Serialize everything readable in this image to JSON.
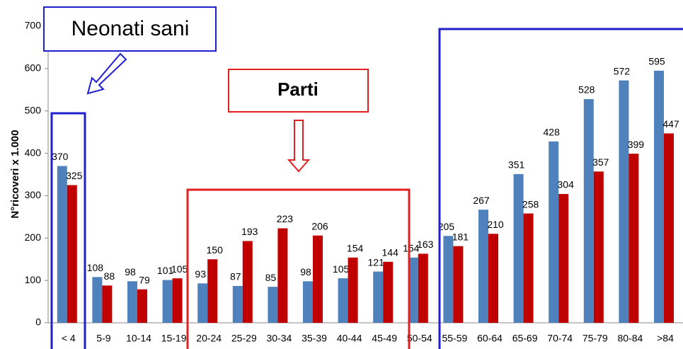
{
  "chart_data": {
    "type": "bar",
    "ylabel": "N°ricoveri x 1.000",
    "annotations": [
      "Neonati sani",
      "Parti"
    ],
    "categories": [
      "< 4",
      "5-9",
      "10-14",
      "15-19",
      "20-24",
      "25-29",
      "30-34",
      "35-39",
      "40-44",
      "45-49",
      "50-54",
      "55-59",
      "60-64",
      "65-69",
      "70-74",
      "75-79",
      "80-84",
      ">84"
    ],
    "series": [
      {
        "color": "#4f81bd",
        "values": [
          370,
          108,
          98,
          101,
          93,
          87,
          85,
          98,
          105,
          121,
          154,
          205,
          267,
          351,
          428,
          528,
          572,
          595
        ]
      },
      {
        "color": "#c00000",
        "values": [
          325,
          88,
          79,
          105,
          150,
          193,
          223,
          206,
          154,
          144,
          163,
          181,
          210,
          258,
          304,
          357,
          399,
          447
        ]
      }
    ],
    "ylim": [
      0,
      700
    ],
    "yticks": [
      0,
      100,
      200,
      300,
      400,
      500,
      600,
      700
    ]
  }
}
